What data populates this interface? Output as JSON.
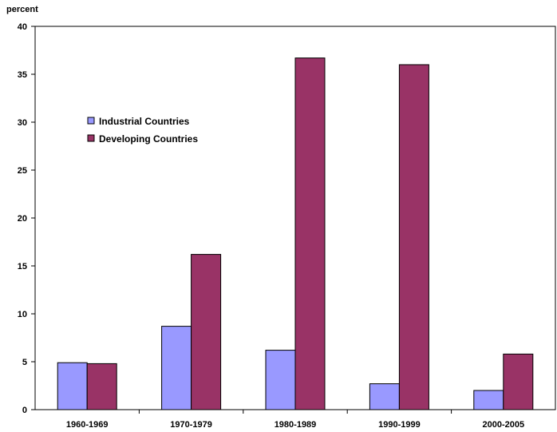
{
  "chart_data": {
    "type": "bar",
    "ylabel": "percent",
    "xlabel": "",
    "ylim": [
      0,
      40
    ],
    "yticks": [
      0,
      5,
      10,
      15,
      20,
      25,
      30,
      35,
      40
    ],
    "grid": false,
    "legend_position": "upper-left inside plot",
    "categories": [
      "1960-1969",
      "1970-1979",
      "1980-1989",
      "1990-1999",
      "2000-2005"
    ],
    "series": [
      {
        "name": "Industrial Countries",
        "color": "#9999ff",
        "values": [
          4.9,
          8.7,
          6.2,
          2.7,
          2.0
        ]
      },
      {
        "name": "Developing Countries",
        "color": "#993366",
        "values": [
          4.8,
          16.2,
          36.7,
          36.0,
          5.8
        ]
      }
    ]
  }
}
